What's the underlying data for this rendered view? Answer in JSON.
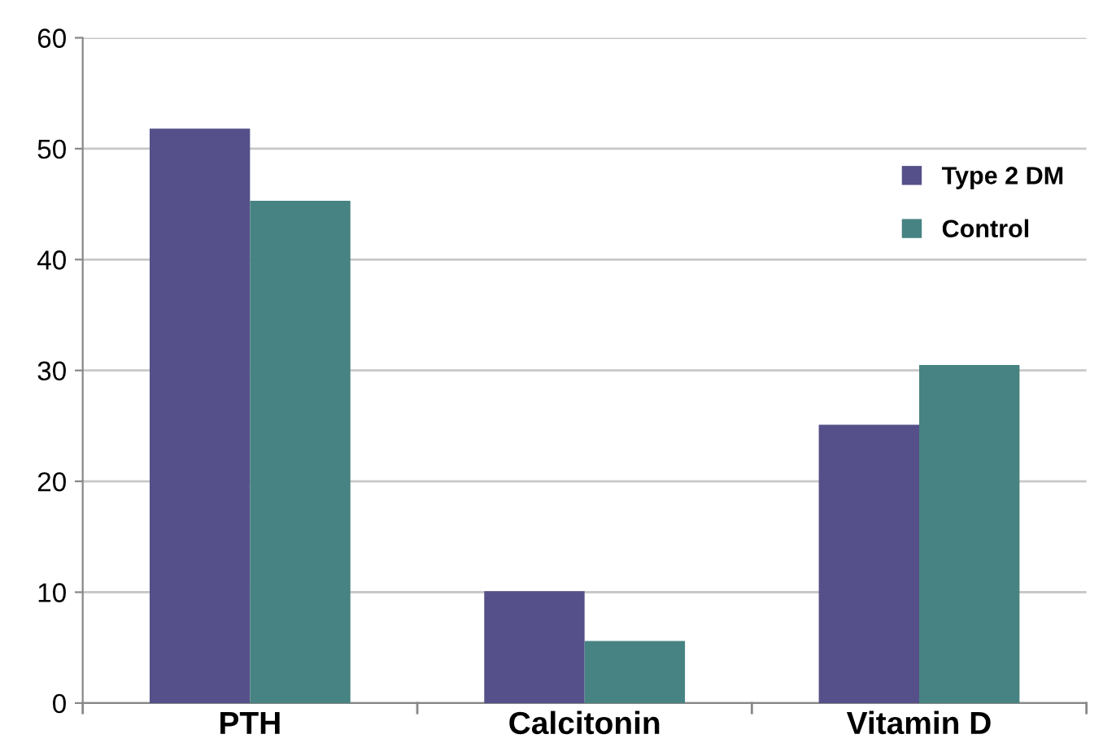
{
  "chart_data": {
    "type": "bar",
    "categories": [
      "PTH",
      "Calcitonin",
      "Vitamin D"
    ],
    "series": [
      {
        "name": "Type 2 DM",
        "color": "#555089",
        "values": [
          51.8,
          10.1,
          25.1
        ]
      },
      {
        "name": "Control",
        "color": "#478382",
        "values": [
          45.3,
          5.6,
          30.5
        ]
      }
    ],
    "ylim": [
      0,
      60
    ],
    "yticks": [
      0,
      10,
      20,
      30,
      40,
      50,
      60
    ],
    "grid": "y",
    "legend": "right"
  }
}
